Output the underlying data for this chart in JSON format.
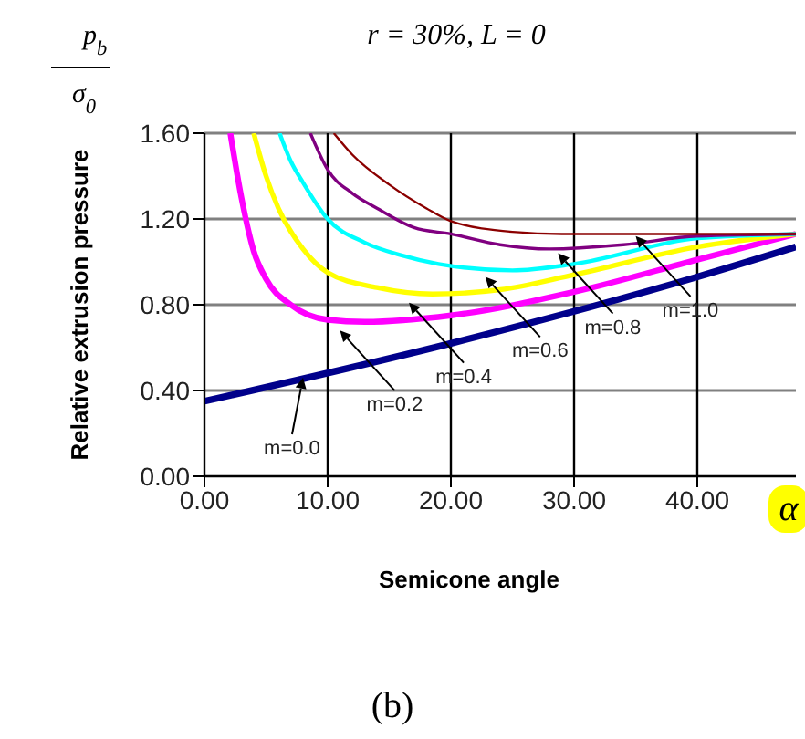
{
  "chart_data": {
    "type": "line",
    "title": "r = 30%, L = 0",
    "xlabel": "Semicone angle",
    "ylabel": "Relative extrusion pressure",
    "xlim": [
      0,
      48
    ],
    "ylim": [
      0,
      1.6
    ],
    "xticks": [
      {
        "value": 0,
        "label": "0.00"
      },
      {
        "value": 10,
        "label": "10.00"
      },
      {
        "value": 20,
        "label": "20.00"
      },
      {
        "value": 30,
        "label": "30.00"
      },
      {
        "value": 40,
        "label": "40.00"
      }
    ],
    "yticks": [
      {
        "value": 0,
        "label": "0.00"
      },
      {
        "value": 0.4,
        "label": "0.40"
      },
      {
        "value": 0.8,
        "label": "0.80"
      },
      {
        "value": 1.2,
        "label": "1.20"
      },
      {
        "value": 1.6,
        "label": "1.60"
      }
    ],
    "grid": true,
    "marker": "none",
    "line_style": "solid",
    "series": [
      {
        "color": "#00008b",
        "x": [
          0,
          20,
          40,
          48
        ],
        "values": [
          0.35,
          0.62,
          0.93,
          1.07
        ]
      },
      {
        "color": "#ff00ff",
        "x": [
          2.1,
          3,
          4,
          5,
          7,
          10,
          13,
          20,
          30,
          40,
          48
        ],
        "values": [
          1.6,
          1.3,
          1.05,
          0.92,
          0.8,
          0.73,
          0.72,
          0.75,
          0.86,
          1.01,
          1.13
        ]
      },
      {
        "color": "#ffff00",
        "x": [
          4,
          5,
          6,
          8,
          10,
          14,
          18.5,
          24,
          30,
          40,
          48
        ],
        "values": [
          1.6,
          1.4,
          1.25,
          1.06,
          0.95,
          0.88,
          0.85,
          0.87,
          0.94,
          1.07,
          1.13
        ]
      },
      {
        "color": "#00ffff",
        "x": [
          6.1,
          7,
          8,
          10,
          13,
          16,
          19,
          25,
          30,
          40,
          48
        ],
        "values": [
          1.6,
          1.47,
          1.37,
          1.2,
          1.09,
          1.03,
          0.99,
          0.96,
          0.99,
          1.11,
          1.13
        ]
      },
      {
        "color": "#800080",
        "x": [
          8.6,
          10,
          12,
          14,
          17,
          20,
          24,
          28,
          34,
          40,
          48
        ],
        "values": [
          1.6,
          1.43,
          1.32,
          1.25,
          1.16,
          1.13,
          1.08,
          1.06,
          1.08,
          1.12,
          1.13
        ]
      },
      {
        "color": "#8b0000",
        "x": [
          10.5,
          12,
          15,
          18,
          20,
          25,
          29,
          48
        ],
        "values": [
          1.6,
          1.5,
          1.36,
          1.25,
          1.19,
          1.14,
          1.13,
          1.13
        ]
      }
    ],
    "annotations": [
      {
        "text": "m=0.0",
        "x": 8,
        "y": 0.46
      },
      {
        "text": "m=0.2",
        "x": 11,
        "y": 0.68
      },
      {
        "text": "m=0.4",
        "x": 16.6,
        "y": 0.81
      },
      {
        "text": "m=0.6",
        "x": 22.8,
        "y": 0.93
      },
      {
        "text": "m=0.8",
        "x": 28.7,
        "y": 1.04
      },
      {
        "text": "m=1.0",
        "x": 35,
        "y": 1.12
      },
      "p$_{b}$",
      "σ$_{0}$",
      "α",
      "(b)"
    ]
  }
}
